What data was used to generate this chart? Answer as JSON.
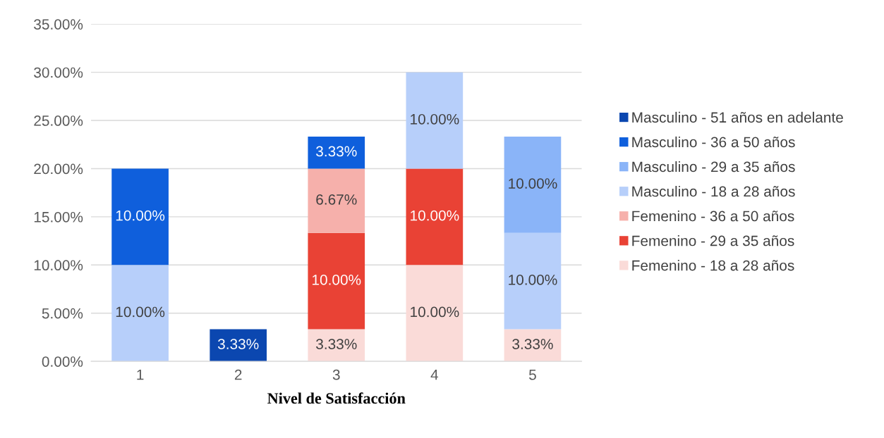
{
  "chart_data": {
    "type": "bar",
    "stacked": true,
    "xlabel": "Nivel de Satisfacción",
    "categories": [
      "1",
      "2",
      "3",
      "4",
      "5"
    ],
    "series": [
      {
        "name": "Femenino - 18 a 28 años",
        "color": "#fadbd8",
        "values": [
          null,
          null,
          3.33,
          10,
          3.33
        ],
        "value_labels": [
          null,
          null,
          "3.33%",
          "10.00%",
          "3.33%"
        ]
      },
      {
        "name": "Femenino - 29 a 35 años",
        "color": "#e94235",
        "values": [
          null,
          null,
          10,
          10,
          null
        ],
        "value_labels": [
          null,
          null,
          "10.00%",
          "10.00%",
          null
        ]
      },
      {
        "name": "Femenino - 36 a 50 años",
        "color": "#f6b0ab",
        "values": [
          null,
          null,
          6.67,
          null,
          null
        ],
        "value_labels": [
          null,
          null,
          "6.67%",
          null,
          null
        ]
      },
      {
        "name": "Masculino - 18 a 28 años",
        "color": "#b7cffa",
        "values": [
          10,
          null,
          null,
          10,
          10
        ],
        "value_labels": [
          "10.00%",
          null,
          null,
          "10.00%",
          "10.00%"
        ]
      },
      {
        "name": "Masculino - 29 a 35 años",
        "color": "#8ab4f8",
        "values": [
          null,
          null,
          null,
          null,
          10
        ],
        "value_labels": [
          null,
          null,
          null,
          null,
          "10.00%"
        ]
      },
      {
        "name": "Masculino - 36 a 50 años",
        "color": "#0f5fdc",
        "values": [
          10,
          null,
          3.33,
          null,
          null
        ],
        "value_labels": [
          "10.00%",
          null,
          "3.33%",
          null,
          null
        ]
      },
      {
        "name": "Masculino - 51 años en adelante",
        "color": "#0b47b0",
        "values": [
          null,
          3.33,
          null,
          null,
          null
        ],
        "value_labels": [
          null,
          "3.33%",
          null,
          null,
          null
        ]
      }
    ],
    "ylim": [
      0,
      35
    ],
    "yticks": [
      {
        "value": 0,
        "label": "0.00%"
      },
      {
        "value": 5,
        "label": "5.00%"
      },
      {
        "value": 10,
        "label": "10.00%"
      },
      {
        "value": 15,
        "label": "15.00%"
      },
      {
        "value": 20,
        "label": "20.00%"
      },
      {
        "value": 25,
        "label": "25.00%"
      },
      {
        "value": 30,
        "label": "30.00%"
      },
      {
        "value": 35,
        "label": "35.00%"
      }
    ],
    "grid": "y",
    "legend": "right"
  }
}
